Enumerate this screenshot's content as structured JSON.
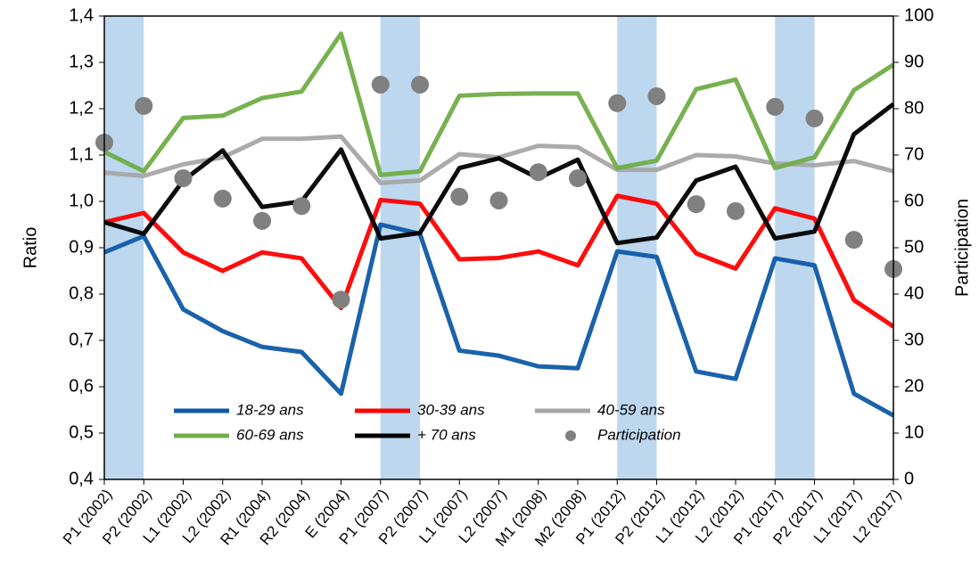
{
  "chart_data": {
    "type": "line",
    "y_label": "Ratio",
    "y2_label": "Participation",
    "categories": [
      "P1 (2002)",
      "P2 (2002)",
      "L1 (2002)",
      "L2 (2002)",
      "R1 (2004)",
      "R2 (2004)",
      "E (2004)",
      "P1 (2007)",
      "P2 (2007)",
      "L1 (2007)",
      "L2 (2007)",
      "M1 (2008)",
      "M2 (2008)",
      "P1 (2012)",
      "P2 (2012)",
      "L1 (2012)",
      "L2 (2012)",
      "P1 (2017)",
      "P2 (2017)",
      "L1 (2017)",
      "L2 (2017)"
    ],
    "highlight_spans": [
      [
        0,
        1
      ],
      [
        7,
        8
      ],
      [
        13,
        14
      ],
      [
        17,
        18
      ]
    ],
    "highlight_color": "#bdd7ee",
    "ylim": [
      0.4,
      1.4
    ],
    "yticks": [
      {
        "value": 0.4,
        "label": "0,4"
      },
      {
        "value": 0.5,
        "label": "0,5"
      },
      {
        "value": 0.6,
        "label": "0,6"
      },
      {
        "value": 0.7,
        "label": "0,7"
      },
      {
        "value": 0.8,
        "label": "0,8"
      },
      {
        "value": 0.9,
        "label": "0,9"
      },
      {
        "value": 1.0,
        "label": "1,0"
      },
      {
        "value": 1.1,
        "label": "1,1"
      },
      {
        "value": 1.2,
        "label": "1,2"
      },
      {
        "value": 1.3,
        "label": "1,3"
      },
      {
        "value": 1.4,
        "label": "1,4"
      }
    ],
    "y2lim": [
      0,
      100
    ],
    "y2ticks": [
      0,
      10,
      20,
      30,
      40,
      50,
      60,
      70,
      80,
      90,
      100
    ],
    "legend": "bottom",
    "series": [
      {
        "name": "18-29 ans",
        "color": "#0e5aa7",
        "values": [
          0.89,
          0.925,
          0.767,
          0.72,
          0.686,
          0.675,
          0.585,
          0.95,
          0.93,
          0.678,
          0.667,
          0.644,
          0.64,
          0.892,
          0.88,
          0.633,
          0.617,
          0.877,
          0.862,
          0.585,
          0.538
        ]
      },
      {
        "name": "30-39 ans",
        "color": "#ff0000",
        "values": [
          0.955,
          0.975,
          0.89,
          0.85,
          0.89,
          0.877,
          0.77,
          1.003,
          0.995,
          0.875,
          0.878,
          0.892,
          0.862,
          1.012,
          0.995,
          0.888,
          0.855,
          0.985,
          0.963,
          0.787,
          0.73
        ]
      },
      {
        "name": "40-59 ans",
        "color": "#a6a6a6",
        "values": [
          1.062,
          1.055,
          1.08,
          1.095,
          1.135,
          1.135,
          1.14,
          1.04,
          1.045,
          1.102,
          1.095,
          1.12,
          1.117,
          1.068,
          1.068,
          1.1,
          1.097,
          1.082,
          1.078,
          1.087,
          1.065
        ]
      },
      {
        "name": "60-69 ans",
        "color": "#70ad47",
        "values": [
          1.107,
          1.065,
          1.18,
          1.185,
          1.223,
          1.237,
          1.362,
          1.057,
          1.065,
          1.228,
          1.232,
          1.233,
          1.233,
          1.072,
          1.088,
          1.242,
          1.263,
          1.072,
          1.095,
          1.24,
          1.295
        ]
      },
      {
        "name": "+ 70 ans",
        "color": "#000000",
        "values": [
          0.955,
          0.93,
          1.045,
          1.11,
          0.988,
          1.0,
          1.112,
          0.92,
          0.932,
          1.072,
          1.093,
          1.05,
          1.09,
          0.91,
          0.922,
          1.045,
          1.075,
          0.92,
          0.935,
          1.145,
          1.21
        ]
      },
      {
        "name": "Participation",
        "color": "#808080",
        "type": "scatter",
        "axis": "y2",
        "values": [
          72.7,
          80.6,
          65,
          60.6,
          55.8,
          59,
          38.8,
          85.2,
          85.2,
          61,
          60.2,
          66.3,
          65,
          81.2,
          82.7,
          59.4,
          57.9,
          80.4,
          77.9,
          51.7,
          45.4
        ]
      }
    ]
  }
}
